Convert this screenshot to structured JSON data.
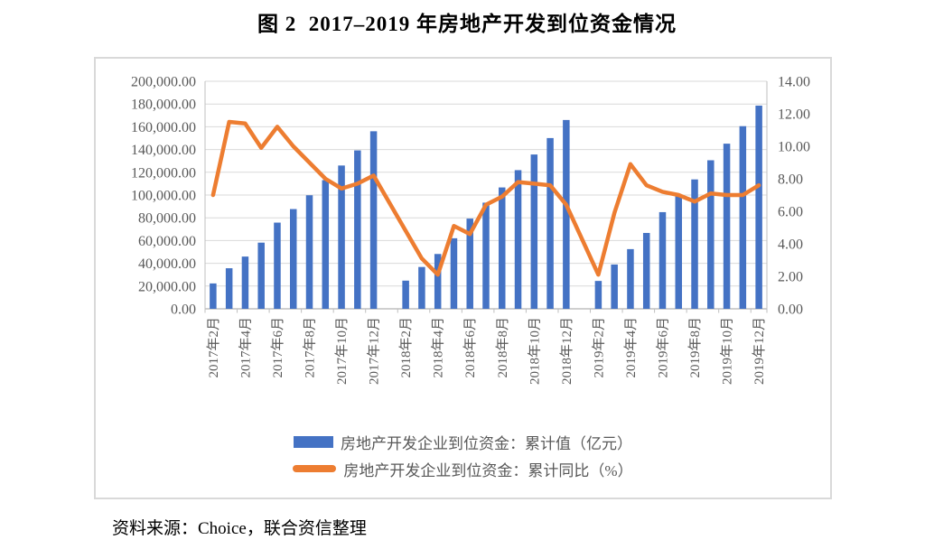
{
  "title": "图 2  2017–2019 年房地产开发到位资金情况",
  "source_note": "资料来源：Choice，联合资信整理",
  "colors": {
    "bar_blue": "#4472C4",
    "line_orange": "#ED7D31",
    "gridline": "#D9D9D9",
    "axis_line": "#BFBFBF",
    "axis_text": "#595959",
    "chart_border": "#D9D9D9",
    "title_text": "#000000"
  },
  "legend": {
    "items": [
      {
        "swatch": "bar",
        "label": "房地产开发企业到位资金：累计值（亿元）"
      },
      {
        "swatch": "line",
        "label": "房地产开发企业到位资金：累计同比（%）"
      }
    ]
  },
  "chart_data": {
    "type": "combo-bar-line",
    "title": "图 2  2017–2019 年房地产开发到位资金情况",
    "xlabel": "",
    "grid": "horizontal",
    "legend_position": "bottom",
    "categories": [
      "2017年2月",
      "2017年3月",
      "2017年4月",
      "2017年5月",
      "2017年6月",
      "2017年7月",
      "2017年8月",
      "2017年9月",
      "2017年10月",
      "2017年11月",
      "2017年12月",
      "2018年1月",
      "2018年2月",
      "2018年3月",
      "2018年4月",
      "2018年5月",
      "2018年6月",
      "2018年7月",
      "2018年8月",
      "2018年9月",
      "2018年10月",
      "2018年11月",
      "2018年12月",
      "2019年1月",
      "2019年2月",
      "2019年3月",
      "2019年4月",
      "2019年5月",
      "2019年6月",
      "2019年7月",
      "2019年8月",
      "2019年9月",
      "2019年10月",
      "2019年11月",
      "2019年12月"
    ],
    "x_tick_labels": [
      "2017年2月",
      "2017年4月",
      "2017年6月",
      "2017年8月",
      "2017年10月",
      "2017年12月",
      "2018年2月",
      "2018年4月",
      "2018年6月",
      "2018年8月",
      "2018年10月",
      "2018年12月",
      "2019年2月",
      "2019年4月",
      "2019年6月",
      "2019年8月",
      "2019年10月",
      "2019年12月"
    ],
    "left_axis": {
      "min": 0,
      "max": 200000,
      "step": 20000,
      "format": "#,##0.00"
    },
    "right_axis": {
      "min": 0,
      "max": 14,
      "step": 2,
      "format": "0.00"
    },
    "series": [
      {
        "name": "房地产开发企业到位资金：累计值（亿元）",
        "type": "bar",
        "axis": "left",
        "values": [
          22307,
          35666,
          45917,
          58158,
          75765,
          87664,
          99804,
          113095,
          125941,
          139227,
          156053,
          null,
          24763,
          36770,
          48192,
          62003,
          79287,
          93308,
          106682,
          121882,
          135636,
          150077,
          165963,
          null,
          24497,
          38948,
          52466,
          66689,
          84966,
          99800,
          113724,
          130571,
          145151,
          160531,
          178609
        ]
      },
      {
        "name": "房地产开发企业到位资金：累计同比（%）",
        "type": "line",
        "axis": "right",
        "values": [
          7.0,
          11.5,
          11.4,
          9.9,
          11.2,
          10.0,
          9.0,
          8.0,
          7.4,
          7.7,
          8.2,
          null,
          4.8,
          3.1,
          2.1,
          5.1,
          4.6,
          6.4,
          6.9,
          7.8,
          7.7,
          7.6,
          6.4,
          null,
          2.1,
          5.9,
          8.9,
          7.6,
          7.2,
          7.0,
          6.6,
          7.1,
          7.0,
          7.0,
          7.6
        ]
      }
    ]
  }
}
